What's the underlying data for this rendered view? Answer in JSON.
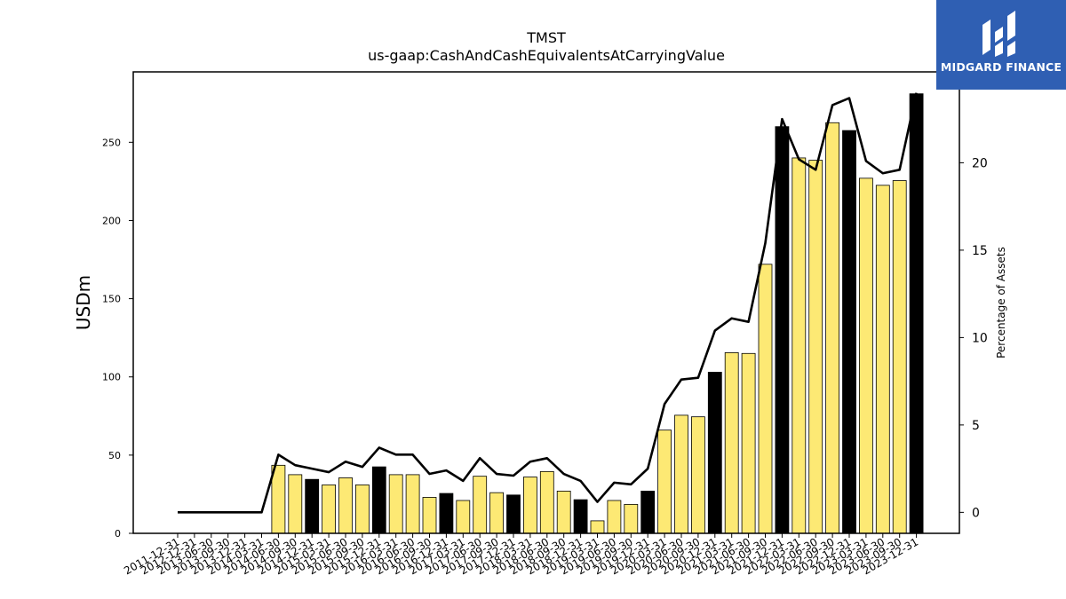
{
  "brand": {
    "name": "MIDGARD FINANCE",
    "bg_color": "#2f5fb3"
  },
  "chart_data": {
    "type": "bar",
    "title": "TMST",
    "subtitle": "us-gaap:CashAndCashEquivalentsAtCarryingValue",
    "ylabel": "USDm",
    "y2label": "Percentage of Assets",
    "ylim": [
      0,
      295
    ],
    "y2lim": [
      -1.2,
      25.2
    ],
    "yticks": [
      0,
      50,
      100,
      150,
      200,
      250
    ],
    "y2ticks": [
      0,
      5,
      10,
      15,
      20
    ],
    "grid": false,
    "categories": [
      "2011-12-31",
      "2012-12-31",
      "2013-06-30",
      "2013-09-30",
      "2013-12-31",
      "2014-03-31",
      "2014-06-30",
      "2014-09-30",
      "2014-12-31",
      "2015-03-31",
      "2015-06-30",
      "2015-09-30",
      "2015-12-31",
      "2016-03-31",
      "2016-06-30",
      "2016-09-30",
      "2016-12-31",
      "2017-03-31",
      "2017-06-30",
      "2017-09-30",
      "2017-12-31",
      "2018-03-31",
      "2018-06-30",
      "2018-09-30",
      "2018-12-31",
      "2019-03-31",
      "2019-06-30",
      "2019-09-30",
      "2019-12-31",
      "2020-03-31",
      "2020-06-30",
      "2020-09-30",
      "2020-12-31",
      "2021-03-31",
      "2021-06-30",
      "2021-09-30",
      "2021-12-31",
      "2022-03-31",
      "2022-06-30",
      "2022-09-30",
      "2022-12-31",
      "2023-03-31",
      "2023-06-30",
      "2023-09-30",
      "2023-12-31"
    ],
    "series": [
      {
        "type": "bar",
        "axis": "left",
        "values": [
          null,
          null,
          null,
          null,
          null,
          null,
          43.5,
          37.5,
          34.5,
          31,
          35.5,
          31,
          42.5,
          37.5,
          37.5,
          23,
          25.5,
          21,
          36.5,
          26,
          24.5,
          36,
          39.5,
          27,
          21.5,
          8,
          21,
          18.5,
          27,
          66,
          75.5,
          74.5,
          103,
          115.5,
          115,
          172,
          260,
          240,
          238.5,
          262.5,
          257.5,
          227,
          222.5,
          225.5,
          281
        ],
        "colors": [
          "#fde974",
          "#fde974",
          "#fde974",
          "#fde974",
          "#000000",
          "#fde974",
          "#fde974",
          "#fde974",
          "#000000",
          "#fde974",
          "#fde974",
          "#fde974",
          "#000000",
          "#fde974",
          "#fde974",
          "#fde974",
          "#000000",
          "#fde974",
          "#fde974",
          "#fde974",
          "#000000",
          "#fde974",
          "#fde974",
          "#fde974",
          "#000000",
          "#fde974",
          "#fde974",
          "#fde974",
          "#000000",
          "#fde974",
          "#fde974",
          "#fde974",
          "#000000",
          "#fde974",
          "#fde974",
          "#fde974",
          "#000000",
          "#fde974",
          "#fde974",
          "#fde974",
          "#000000",
          "#fde974",
          "#fde974",
          "#fde974",
          "#000000"
        ]
      },
      {
        "type": "line",
        "axis": "right",
        "color": "#000000",
        "values": [
          0,
          0,
          0,
          0,
          0,
          0,
          3.3,
          2.7,
          2.5,
          2.3,
          2.9,
          2.6,
          3.7,
          3.3,
          3.3,
          2.2,
          2.4,
          1.8,
          3.1,
          2.2,
          2.1,
          2.9,
          3.1,
          2.2,
          1.8,
          0.6,
          1.7,
          1.6,
          2.5,
          6.2,
          7.6,
          7.7,
          10.4,
          11.1,
          10.9,
          15.4,
          22.5,
          20.2,
          19.6,
          23.3,
          23.7,
          20.1,
          19.4,
          19.6,
          24.0
        ]
      }
    ]
  }
}
